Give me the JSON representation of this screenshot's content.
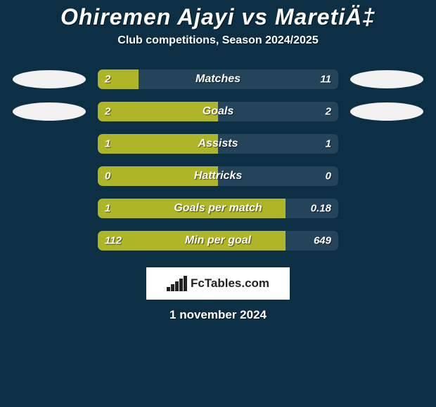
{
  "background_color": "#0d2f44",
  "text_color": "#ffffff",
  "title": "Ohiremen Ajayi vs MaretiÄ‡",
  "subtitle": "Club competitions, Season 2024/2025",
  "oval_color": "#f2f2f2",
  "fill_color": "#aeb526",
  "track_color": "#24445a",
  "label_color": "#ffffff",
  "value_color": "#ffffff",
  "rows": [
    {
      "label": "Matches",
      "left_val": "2",
      "right_val": "11",
      "fill_pct": 17,
      "show_ovals": true
    },
    {
      "label": "Goals",
      "left_val": "2",
      "right_val": "2",
      "fill_pct": 50,
      "show_ovals": true
    },
    {
      "label": "Assists",
      "left_val": "1",
      "right_val": "1",
      "fill_pct": 50,
      "show_ovals": false
    },
    {
      "label": "Hattricks",
      "left_val": "0",
      "right_val": "0",
      "fill_pct": 50,
      "show_ovals": false
    },
    {
      "label": "Goals per match",
      "left_val": "1",
      "right_val": "0.18",
      "fill_pct": 78,
      "show_ovals": false
    },
    {
      "label": "Min per goal",
      "left_val": "112",
      "right_val": "649",
      "fill_pct": 78,
      "show_ovals": false
    }
  ],
  "logo": {
    "box_bg": "#ffffff",
    "text": "FcTables.com",
    "text_color": "#222222",
    "bar_color": "#222222",
    "bars_heights": [
      6,
      10,
      14,
      18,
      22
    ]
  },
  "date_text": "1 november 2024"
}
